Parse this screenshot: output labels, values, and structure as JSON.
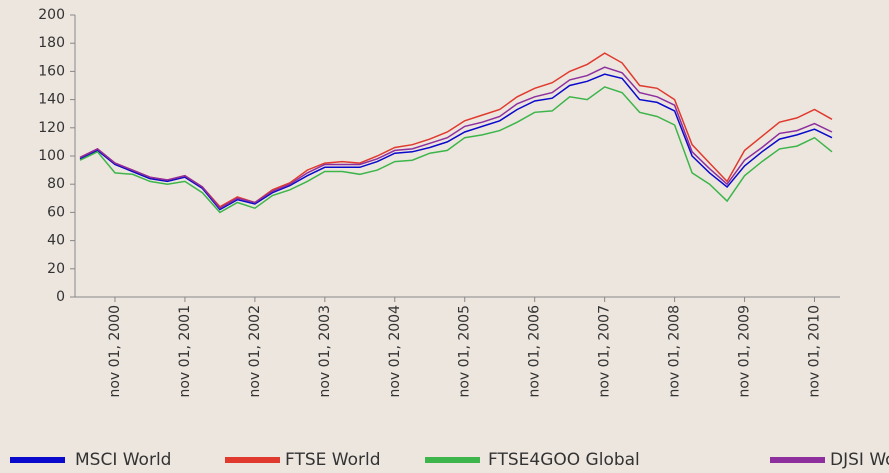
{
  "chart_data": {
    "type": "line",
    "categories": [
      null,
      null,
      "nov 01, 2000",
      null,
      null,
      null,
      "nov 01, 2001",
      null,
      null,
      null,
      "nov 01, 2002",
      null,
      null,
      null,
      "nov 01, 2003",
      null,
      null,
      null,
      "nov 01, 2004",
      null,
      null,
      null,
      "nov 01, 2005",
      null,
      null,
      null,
      "nov 01, 2006",
      null,
      null,
      null,
      "nov 01, 2007",
      null,
      null,
      null,
      "nov 01, 2008",
      null,
      null,
      null,
      "nov 01, 2009",
      null,
      null,
      null,
      "nov 01, 2010",
      null
    ],
    "series": [
      {
        "name": "MSCI World",
        "color": "#0a0acc",
        "values": [
          98,
          104,
          94,
          89,
          84,
          82,
          85,
          77,
          62,
          69,
          66,
          74,
          79,
          86,
          92,
          92,
          92,
          96,
          102,
          103,
          106,
          110,
          117,
          121,
          125,
          133,
          139,
          141,
          150,
          153,
          158,
          155,
          140,
          138,
          132,
          100,
          88,
          78,
          93,
          103,
          112,
          115,
          119,
          113
        ]
      },
      {
        "name": "FTSE World",
        "color": "#e03a2e",
        "values": [
          99,
          105,
          95,
          90,
          85,
          83,
          86,
          78,
          64,
          71,
          67,
          76,
          81,
          90,
          95,
          96,
          95,
          100,
          106,
          108,
          112,
          117,
          125,
          129,
          133,
          142,
          148,
          152,
          160,
          165,
          173,
          166,
          150,
          148,
          140,
          108,
          95,
          82,
          104,
          114,
          124,
          127,
          133,
          126
        ]
      },
      {
        "name": "FTSE4GOO Global",
        "color": "#3db54a",
        "values": [
          97,
          103,
          88,
          87,
          82,
          80,
          82,
          74,
          60,
          67,
          63,
          72,
          76,
          82,
          89,
          89,
          87,
          90,
          96,
          97,
          102,
          104,
          113,
          115,
          118,
          124,
          131,
          132,
          142,
          140,
          149,
          145,
          131,
          128,
          122,
          88,
          80,
          68,
          86,
          96,
          105,
          107,
          113,
          103
        ]
      },
      {
        "name": "DJSI World",
        "color": "#8e2f9e",
        "values": [
          99,
          105,
          95,
          90,
          85,
          83,
          86,
          78,
          63,
          70,
          67,
          75,
          80,
          88,
          94,
          94,
          94,
          98,
          104,
          105,
          109,
          113,
          121,
          124,
          128,
          137,
          142,
          145,
          154,
          157,
          163,
          159,
          145,
          142,
          136,
          103,
          91,
          80,
          97,
          106,
          116,
          118,
          123,
          117
        ]
      }
    ],
    "ylim": [
      0,
      200
    ],
    "yticks": [
      0,
      20,
      40,
      60,
      80,
      100,
      120,
      140,
      160,
      180,
      200
    ],
    "legend": "bottom"
  }
}
